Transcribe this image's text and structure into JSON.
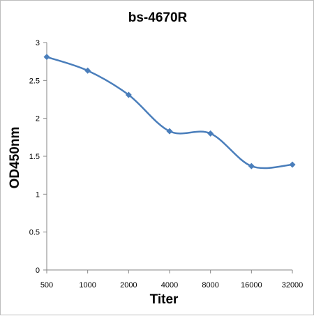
{
  "chart_data": {
    "type": "line",
    "title": "bs-4670R",
    "xlabel": "Titer",
    "ylabel": "OD450nm",
    "categories": [
      "500",
      "1000",
      "2000",
      "4000",
      "8000",
      "16000",
      "32000"
    ],
    "series": [
      {
        "values": [
          2.81,
          2.63,
          2.31,
          1.83,
          1.8,
          1.37,
          1.39
        ]
      }
    ],
    "ylim": [
      0,
      3
    ],
    "yticks": [
      "0",
      "0.5",
      "1",
      "1.5",
      "2",
      "2.5",
      "3"
    ],
    "grid": false,
    "legend": "none",
    "smooth": true,
    "colors": {
      "line": "#4a7ebb",
      "marker": "#4a7ebb",
      "axis": "#868686"
    }
  }
}
